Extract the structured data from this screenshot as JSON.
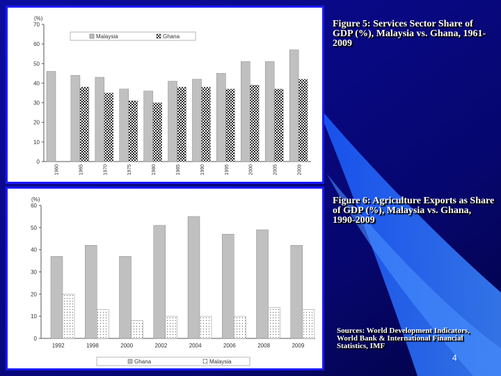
{
  "captions": {
    "figure5": "Figure 5: Services Sector Share of GDP (%), Malaysia vs. Ghana, 1961-2009",
    "figure6": "Figure 6: Agriculture Exports as Share of GDP (%), Malaysia vs. Ghana, 1990-2009",
    "sources": "Sources: World Development Indicators, World Bank & International Financial Statistics, IMF"
  },
  "page_number": "4",
  "colors": {
    "background": "#0a0a8a",
    "accent": "#2a6bff",
    "frame_border": "#1a1aff",
    "bar_gray": "#c0c0c0"
  },
  "chart_data": [
    {
      "type": "bar",
      "ylabel": "(%)",
      "ylim": [
        0,
        70
      ],
      "yticks": [
        0,
        10,
        20,
        30,
        40,
        50,
        60,
        70
      ],
      "categories": [
        "1960",
        "1965",
        "1970",
        "1975",
        "1980",
        "1985",
        "1990",
        "1995",
        "2000",
        "2005",
        "2009"
      ],
      "series": [
        {
          "name": "Malaysia",
          "style": "solid-gray",
          "values": [
            46,
            44,
            43,
            37,
            36,
            41,
            42,
            45,
            51,
            51,
            57
          ]
        },
        {
          "name": "Ghana",
          "style": "checker",
          "values": [
            null,
            38,
            35,
            31,
            30,
            38,
            38,
            37,
            39,
            37,
            42
          ]
        }
      ],
      "legend_position": "top",
      "grid": true
    },
    {
      "type": "bar",
      "ylabel": "(%)",
      "ylim": [
        0,
        60
      ],
      "yticks": [
        0,
        10,
        20,
        30,
        40,
        50,
        60
      ],
      "categories": [
        "1992",
        "1998",
        "2000",
        "2002",
        "2004",
        "2006",
        "2008",
        "2009"
      ],
      "series": [
        {
          "name": "Ghana",
          "style": "solid-gray",
          "values": [
            37,
            42,
            37,
            51,
            55,
            47,
            49,
            42
          ]
        },
        {
          "name": "Malaysia",
          "style": "dotted",
          "values": [
            20,
            13,
            8,
            10,
            10,
            10,
            14,
            13
          ]
        }
      ],
      "legend_position": "bottom",
      "grid": true
    }
  ]
}
